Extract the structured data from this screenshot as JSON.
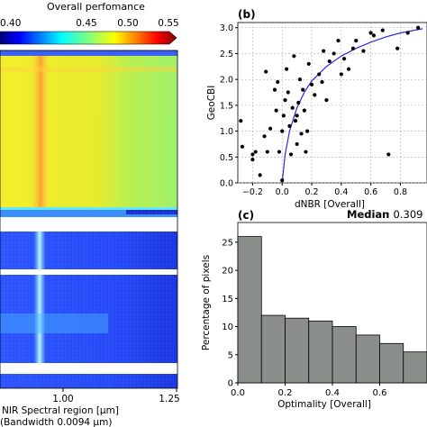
{
  "colorbar": {
    "label": "Overall perfomance",
    "ticks": [
      "0.40",
      "0.45",
      "0.50",
      "0.55"
    ],
    "range": [
      0.4,
      0.55
    ],
    "colors": [
      "#00007f",
      "#0000ff",
      "#007fff",
      "#00ffff",
      "#7fff7f",
      "#ffff00",
      "#ff7f00",
      "#ff0000",
      "#7f0000"
    ]
  },
  "heatmap": {
    "x_ticks": [
      "0.75",
      "1.00",
      "1.25"
    ],
    "xlabel_line1": "NIR Spectral region [μm]",
    "xlabel_line2": "(Bandwidth 0.0094 μm)"
  },
  "panel_b": {
    "label": "(b)",
    "xlabel": "dNBR [Overall]",
    "ylabel": "GeoCBI",
    "x_ticks": [
      "−0.2",
      "0.0",
      "0.2",
      "0.4",
      "0.6",
      "0.8"
    ],
    "y_ticks": [
      "0.0",
      "0.5",
      "1.0",
      "1.5",
      "2.0",
      "2.5",
      "3.0"
    ]
  },
  "panel_c": {
    "label": "(c)",
    "median_label": "Median",
    "median_value": ": 0.309",
    "xlabel": "Optimality [Overall]",
    "ylabel": "Percentage of pixels",
    "x_ticks": [
      "0.0",
      "0.2",
      "0.4",
      "0.6"
    ],
    "y_ticks": [
      "0",
      "5",
      "10",
      "15",
      "20",
      "25"
    ]
  },
  "chart_data": [
    {
      "type": "heatmap",
      "xlim": [
        0.75,
        1.25
      ],
      "x_ticks": [
        0.75,
        1.0,
        1.25
      ],
      "colorbar_range": [
        0.4,
        0.55
      ]
    },
    {
      "type": "scatter",
      "xlim": [
        -0.3,
        0.98
      ],
      "ylim": [
        0,
        3.1
      ],
      "points": [
        [
          -0.28,
          1.2
        ],
        [
          -0.27,
          0.7
        ],
        [
          -0.2,
          0.55
        ],
        [
          -0.2,
          0.45
        ],
        [
          -0.18,
          0.6
        ],
        [
          -0.15,
          0.15
        ],
        [
          -0.12,
          0.9
        ],
        [
          -0.11,
          2.15
        ],
        [
          -0.1,
          0.6
        ],
        [
          -0.08,
          1.05
        ],
        [
          -0.05,
          1.8
        ],
        [
          -0.04,
          1.4
        ],
        [
          -0.03,
          1.95
        ],
        [
          -0.02,
          0.6
        ],
        [
          0.0,
          0.05
        ],
        [
          0.0,
          1.0
        ],
        [
          0.01,
          1.3
        ],
        [
          0.02,
          1.6
        ],
        [
          0.03,
          2.2
        ],
        [
          0.04,
          1.75
        ],
        [
          0.05,
          1.1
        ],
        [
          0.06,
          0.55
        ],
        [
          0.07,
          1.45
        ],
        [
          0.08,
          2.45
        ],
        [
          0.09,
          1.2
        ],
        [
          0.1,
          0.75
        ],
        [
          0.1,
          1.3
        ],
        [
          0.11,
          1.55
        ],
        [
          0.12,
          2.0
        ],
        [
          0.13,
          0.95
        ],
        [
          0.14,
          1.8
        ],
        [
          0.15,
          1.4
        ],
        [
          0.16,
          0.6
        ],
        [
          0.17,
          1.0
        ],
        [
          0.18,
          2.3
        ],
        [
          0.2,
          1.9
        ],
        [
          0.22,
          1.7
        ],
        [
          0.25,
          2.1
        ],
        [
          0.27,
          1.95
        ],
        [
          0.28,
          2.55
        ],
        [
          0.3,
          1.6
        ],
        [
          0.32,
          2.35
        ],
        [
          0.35,
          2.5
        ],
        [
          0.38,
          2.75
        ],
        [
          0.4,
          2.1
        ],
        [
          0.42,
          2.4
        ],
        [
          0.45,
          2.2
        ],
        [
          0.48,
          2.6
        ],
        [
          0.5,
          2.75
        ],
        [
          0.55,
          2.55
        ],
        [
          0.6,
          2.9
        ],
        [
          0.62,
          2.85
        ],
        [
          0.68,
          2.95
        ],
        [
          0.72,
          0.55
        ],
        [
          0.78,
          2.6
        ],
        [
          0.85,
          2.9
        ],
        [
          0.92,
          3.0
        ]
      ],
      "fit_curve": [
        [
          0.0,
          0.0
        ],
        [
          0.02,
          0.55
        ],
        [
          0.05,
          1.0
        ],
        [
          0.1,
          1.45
        ],
        [
          0.15,
          1.75
        ],
        [
          0.2,
          1.97
        ],
        [
          0.3,
          2.25
        ],
        [
          0.4,
          2.45
        ],
        [
          0.5,
          2.6
        ],
        [
          0.6,
          2.72
        ],
        [
          0.7,
          2.82
        ],
        [
          0.8,
          2.9
        ],
        [
          0.95,
          2.98
        ]
      ]
    },
    {
      "type": "bar",
      "bin_edges": [
        0.0,
        0.1,
        0.2,
        0.3,
        0.4,
        0.5,
        0.6,
        0.7,
        0.8
      ],
      "values": [
        26.0,
        12.0,
        11.5,
        11.0,
        10.0,
        8.5,
        7.0,
        5.5
      ],
      "ylim": [
        0,
        28.5
      ],
      "xlim": [
        0.0,
        0.8
      ],
      "median": 0.309
    }
  ]
}
